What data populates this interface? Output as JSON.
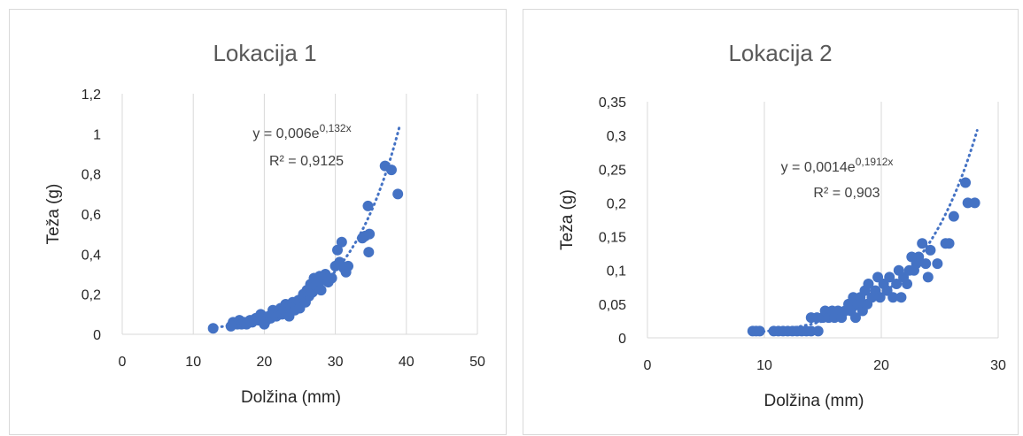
{
  "chart_data": [
    {
      "type": "scatter",
      "title": "Lokacija 1",
      "xlabel": "Dolžina (mm)",
      "ylabel": "Teža (g)",
      "xlim": [
        0,
        50
      ],
      "ylim": [
        0,
        1.2
      ],
      "x_ticks": [
        "0",
        "10",
        "20",
        "30",
        "40",
        "50"
      ],
      "y_ticks": [
        "0",
        "0,2",
        "0,4",
        "0,6",
        "0,8",
        "1",
        "1,2"
      ],
      "grid": "vertical",
      "color": "#4472C4",
      "trendline": {
        "type": "exponential",
        "a": 0.006,
        "b": 0.132,
        "x_range": [
          12.5,
          39
        ],
        "equation_base": "y = 0,006e",
        "equation_exp": "0,132x",
        "r2_label": "R² = 0,9125"
      },
      "points": [
        [
          12.8,
          0.03
        ],
        [
          15.3,
          0.04
        ],
        [
          15.6,
          0.06
        ],
        [
          16.2,
          0.05
        ],
        [
          16.5,
          0.07
        ],
        [
          16.8,
          0.05
        ],
        [
          17.2,
          0.06
        ],
        [
          17.5,
          0.05
        ],
        [
          18.0,
          0.07
        ],
        [
          18.3,
          0.06
        ],
        [
          18.8,
          0.08
        ],
        [
          19.2,
          0.07
        ],
        [
          19.5,
          0.1
        ],
        [
          19.8,
          0.09
        ],
        [
          20.0,
          0.05
        ],
        [
          20.3,
          0.07
        ],
        [
          20.6,
          0.09
        ],
        [
          20.9,
          0.08
        ],
        [
          21.2,
          0.12
        ],
        [
          21.4,
          0.1
        ],
        [
          21.7,
          0.09
        ],
        [
          22.0,
          0.11
        ],
        [
          22.3,
          0.13
        ],
        [
          22.5,
          0.1
        ],
        [
          22.8,
          0.12
        ],
        [
          23.0,
          0.15
        ],
        [
          23.3,
          0.11
        ],
        [
          23.5,
          0.09
        ],
        [
          23.8,
          0.13
        ],
        [
          24.0,
          0.16
        ],
        [
          24.3,
          0.12
        ],
        [
          24.5,
          0.14
        ],
        [
          24.8,
          0.17
        ],
        [
          25.0,
          0.13
        ],
        [
          25.3,
          0.18
        ],
        [
          25.5,
          0.2
        ],
        [
          25.8,
          0.16
        ],
        [
          26.0,
          0.22
        ],
        [
          26.3,
          0.19
        ],
        [
          26.5,
          0.25
        ],
        [
          26.8,
          0.21
        ],
        [
          27.0,
          0.28
        ],
        [
          27.3,
          0.24
        ],
        [
          27.5,
          0.26
        ],
        [
          27.8,
          0.29
        ],
        [
          28.0,
          0.22
        ],
        [
          28.3,
          0.27
        ],
        [
          28.6,
          0.3
        ],
        [
          29.0,
          0.26
        ],
        [
          29.5,
          0.28
        ],
        [
          30.0,
          0.34
        ],
        [
          30.3,
          0.42
        ],
        [
          30.6,
          0.36
        ],
        [
          30.9,
          0.46
        ],
        [
          31.2,
          0.33
        ],
        [
          31.5,
          0.31
        ],
        [
          31.8,
          0.34
        ],
        [
          33.8,
          0.48
        ],
        [
          34.2,
          0.49
        ],
        [
          34.6,
          0.64
        ],
        [
          34.8,
          0.5
        ],
        [
          34.7,
          0.41
        ],
        [
          37.0,
          0.84
        ],
        [
          37.9,
          0.82
        ],
        [
          38.8,
          0.7
        ]
      ]
    },
    {
      "type": "scatter",
      "title": "Lokacija 2",
      "xlabel": "Dolžina (mm)",
      "ylabel": "Teža (g)",
      "xlim": [
        0,
        30
      ],
      "ylim": [
        0,
        0.35
      ],
      "x_ticks": [
        "0",
        "10",
        "20",
        "30"
      ],
      "y_ticks": [
        "0",
        "0,05",
        "0,1",
        "0,15",
        "0,2",
        "0,25",
        "0,3",
        "0,35"
      ],
      "grid": "vertical",
      "color": "#4472C4",
      "trendline": {
        "type": "exponential",
        "a": 0.0014,
        "b": 0.1912,
        "x_range": [
          9,
          28.2
        ],
        "equation_base": "y = 0,0014e",
        "equation_exp": "0,1912x",
        "r2_label": "R² = 0,903"
      },
      "points": [
        [
          9.0,
          0.01
        ],
        [
          9.3,
          0.01
        ],
        [
          9.6,
          0.01
        ],
        [
          10.8,
          0.01
        ],
        [
          11.2,
          0.01
        ],
        [
          11.6,
          0.01
        ],
        [
          12.0,
          0.01
        ],
        [
          12.4,
          0.01
        ],
        [
          12.8,
          0.01
        ],
        [
          13.2,
          0.01
        ],
        [
          13.6,
          0.01
        ],
        [
          14.0,
          0.01
        ],
        [
          14.6,
          0.01
        ],
        [
          14.0,
          0.03
        ],
        [
          14.5,
          0.03
        ],
        [
          15.0,
          0.03
        ],
        [
          15.2,
          0.04
        ],
        [
          15.5,
          0.03
        ],
        [
          15.8,
          0.04
        ],
        [
          16.0,
          0.03
        ],
        [
          16.3,
          0.04
        ],
        [
          16.6,
          0.03
        ],
        [
          16.9,
          0.04
        ],
        [
          17.2,
          0.05
        ],
        [
          17.4,
          0.04
        ],
        [
          17.6,
          0.06
        ],
        [
          17.8,
          0.03
        ],
        [
          18.0,
          0.05
        ],
        [
          18.2,
          0.06
        ],
        [
          18.4,
          0.04
        ],
        [
          18.6,
          0.07
        ],
        [
          18.8,
          0.05
        ],
        [
          18.9,
          0.08
        ],
        [
          19.2,
          0.06
        ],
        [
          19.5,
          0.07
        ],
        [
          19.7,
          0.09
        ],
        [
          19.9,
          0.06
        ],
        [
          20.2,
          0.08
        ],
        [
          20.5,
          0.07
        ],
        [
          20.7,
          0.09
        ],
        [
          21.0,
          0.06
        ],
        [
          21.3,
          0.08
        ],
        [
          21.5,
          0.1
        ],
        [
          21.7,
          0.06
        ],
        [
          21.9,
          0.09
        ],
        [
          22.2,
          0.08
        ],
        [
          22.4,
          0.1
        ],
        [
          22.6,
          0.12
        ],
        [
          22.8,
          0.1
        ],
        [
          23.0,
          0.11
        ],
        [
          23.2,
          0.12
        ],
        [
          23.5,
          0.14
        ],
        [
          23.8,
          0.11
        ],
        [
          24.0,
          0.09
        ],
        [
          24.2,
          0.13
        ],
        [
          24.8,
          0.11
        ],
        [
          25.5,
          0.14
        ],
        [
          25.8,
          0.14
        ],
        [
          26.2,
          0.18
        ],
        [
          27.2,
          0.23
        ],
        [
          27.4,
          0.2
        ],
        [
          28.0,
          0.2
        ]
      ]
    }
  ]
}
